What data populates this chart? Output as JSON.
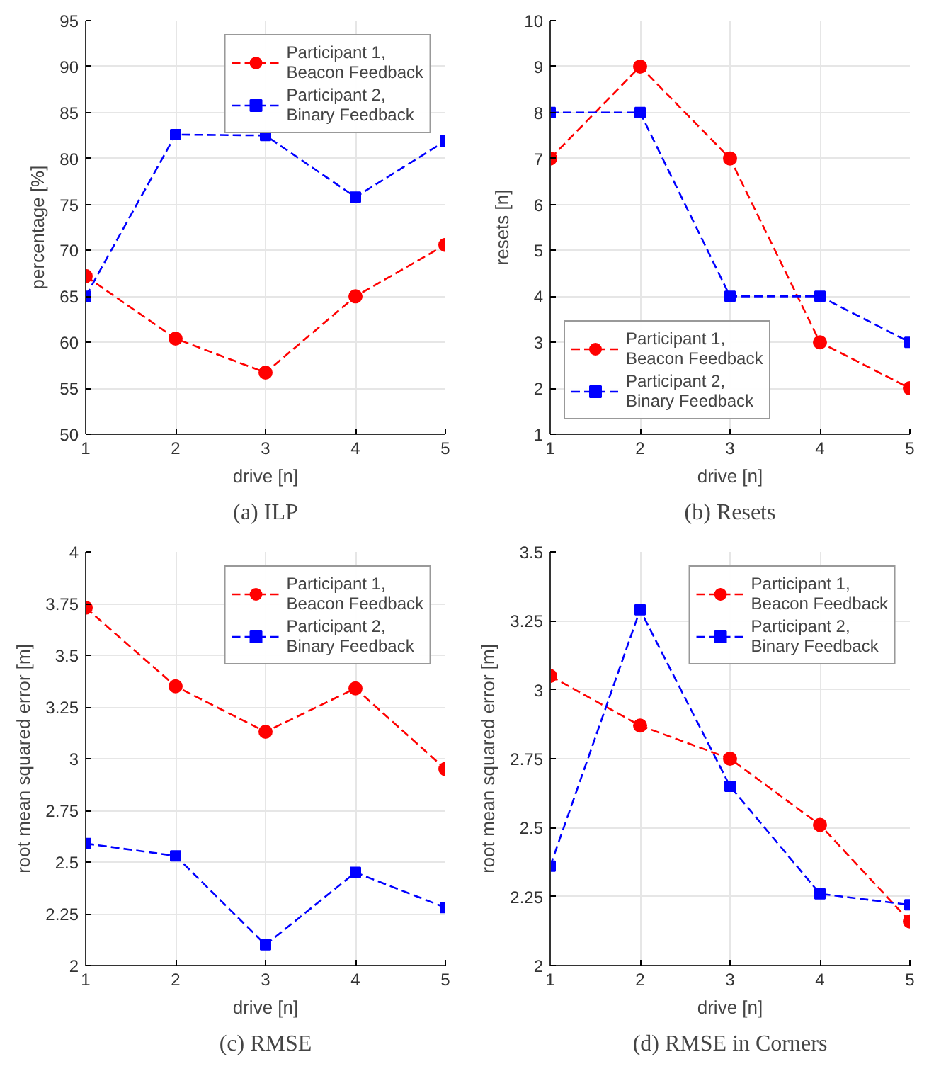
{
  "chart_data": [
    {
      "type": "line",
      "title": "(a) ILP",
      "xlabel": "drive [n]",
      "ylabel": "percentage [%]",
      "x": [
        1,
        2,
        3,
        4,
        5
      ],
      "xlim": [
        1,
        5
      ],
      "xticks": [
        1,
        2,
        3,
        4,
        5
      ],
      "ylim": [
        50,
        95
      ],
      "yticks": [
        50,
        55,
        60,
        65,
        70,
        75,
        80,
        85,
        90,
        95
      ],
      "grid": true,
      "legend": "top right",
      "line_style": "dashed",
      "series": [
        {
          "name": "Participant 1,\nBeacon Feedback",
          "color": "#ff0000",
          "marker": "circle",
          "values": [
            67.2,
            60.4,
            56.7,
            65.0,
            70.6
          ]
        },
        {
          "name": "Participant 2,\nBinary Feedback",
          "color": "#0000ff",
          "marker": "square",
          "values": [
            65.0,
            82.6,
            82.5,
            75.8,
            81.9
          ]
        }
      ]
    },
    {
      "type": "line",
      "title": "(b) Resets",
      "xlabel": "drive [n]",
      "ylabel": "resets [n]",
      "x": [
        1,
        2,
        3,
        4,
        5
      ],
      "xlim": [
        1,
        5
      ],
      "xticks": [
        1,
        2,
        3,
        4,
        5
      ],
      "ylim": [
        1,
        10
      ],
      "yticks": [
        1,
        2,
        3,
        4,
        5,
        6,
        7,
        8,
        9,
        10
      ],
      "grid": true,
      "legend": "bottom left",
      "line_style": "dashed",
      "series": [
        {
          "name": "Participant 1,\nBeacon Feedback",
          "color": "#ff0000",
          "marker": "circle",
          "values": [
            7,
            9,
            7,
            3,
            2
          ]
        },
        {
          "name": "Participant 2,\nBinary Feedback",
          "color": "#0000ff",
          "marker": "square",
          "values": [
            8,
            8,
            4,
            4,
            3
          ]
        }
      ]
    },
    {
      "type": "line",
      "title": "(c) RMSE",
      "xlabel": "drive [n]",
      "ylabel": "root mean squared error [m]",
      "x": [
        1,
        2,
        3,
        4,
        5
      ],
      "xlim": [
        1,
        5
      ],
      "xticks": [
        1,
        2,
        3,
        4,
        5
      ],
      "ylim": [
        2,
        4
      ],
      "yticks": [
        2,
        2.25,
        2.5,
        2.75,
        3,
        3.25,
        3.5,
        3.75,
        4
      ],
      "grid": true,
      "legend": "top right",
      "line_style": "dashed",
      "series": [
        {
          "name": "Participant 1,\nBeacon Feedback",
          "color": "#ff0000",
          "marker": "circle",
          "values": [
            3.73,
            3.35,
            3.13,
            3.34,
            2.95
          ]
        },
        {
          "name": "Participant 2,\nBinary Feedback",
          "color": "#0000ff",
          "marker": "square",
          "values": [
            2.59,
            2.53,
            2.1,
            2.45,
            2.28
          ]
        }
      ]
    },
    {
      "type": "line",
      "title": "(d) RMSE in Corners",
      "xlabel": "drive [n]",
      "ylabel": "root mean squared error [m]",
      "x": [
        1,
        2,
        3,
        4,
        5
      ],
      "xlim": [
        1,
        5
      ],
      "xticks": [
        1,
        2,
        3,
        4,
        5
      ],
      "ylim": [
        2,
        3.5
      ],
      "yticks": [
        2,
        2.25,
        2.5,
        2.75,
        3,
        3.25,
        3.5
      ],
      "grid": true,
      "legend": "top right",
      "line_style": "dashed",
      "series": [
        {
          "name": "Participant 1,\nBeacon Feedback",
          "color": "#ff0000",
          "marker": "circle",
          "values": [
            3.05,
            2.87,
            2.75,
            2.51,
            2.16
          ]
        },
        {
          "name": "Participant 2,\nBinary Feedback",
          "color": "#0000ff",
          "marker": "square",
          "values": [
            2.36,
            3.29,
            2.65,
            2.26,
            2.22
          ]
        }
      ]
    }
  ]
}
